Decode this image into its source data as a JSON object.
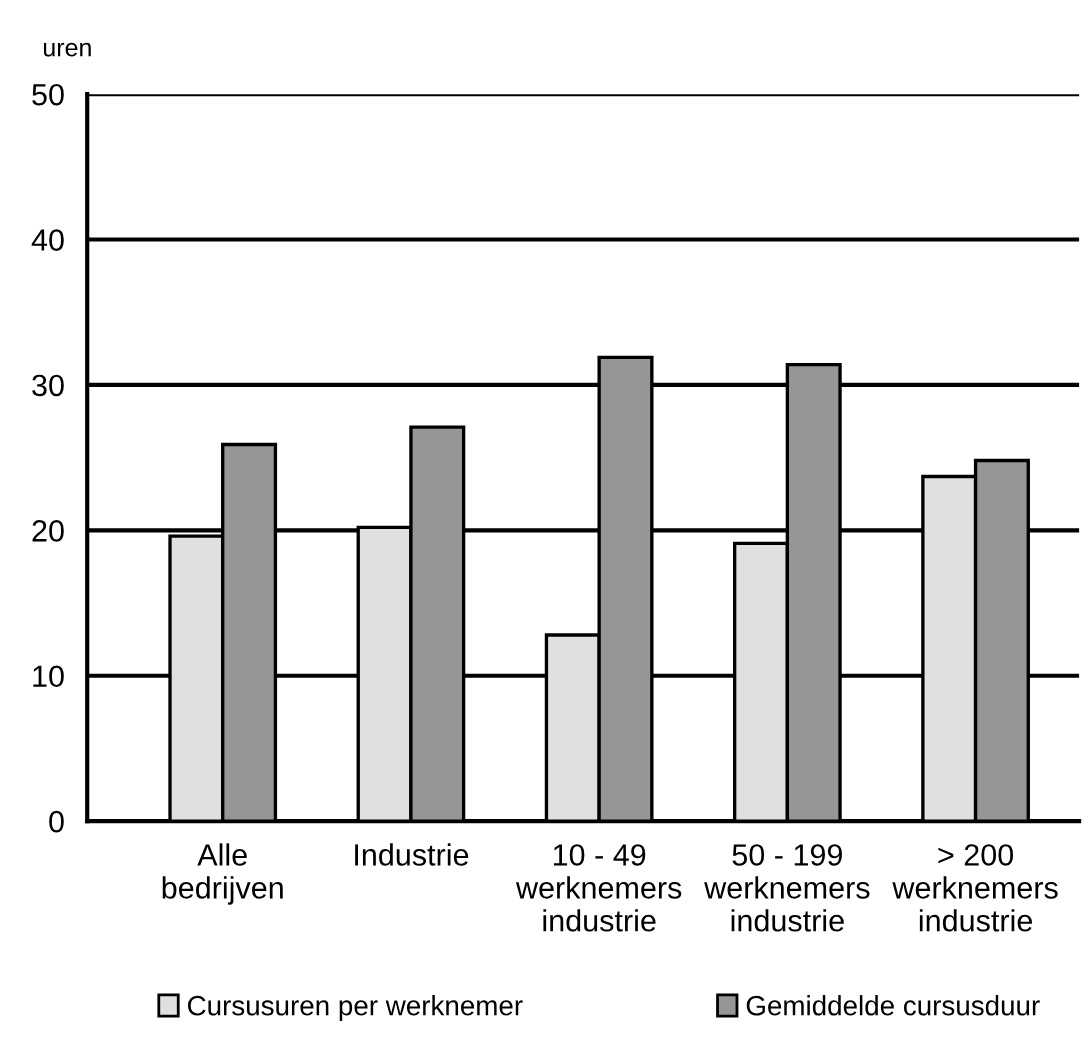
{
  "chart_data": {
    "type": "bar",
    "ylabel": "uren",
    "categories": [
      "Alle\nbedrijven",
      "Industrie",
      "10 - 49\nwerknemers\nindustrie",
      "50 - 199\nwerknemers\nindustrie",
      "> 200\nwerknemers\nindustrie"
    ],
    "series": [
      {
        "name": "Cursusuren per werknemer",
        "color": "#e0e0e0",
        "values": [
          19.6,
          20.2,
          12.8,
          19.1,
          23.7
        ]
      },
      {
        "name": "Gemiddelde cursusduur",
        "color": "#969696",
        "values": [
          25.9,
          27.1,
          31.9,
          31.4,
          24.8
        ]
      }
    ],
    "ylim": [
      0,
      50
    ],
    "yticks": [
      0,
      10,
      20,
      30,
      40,
      50
    ],
    "grid": "y",
    "legend": "bottom"
  }
}
